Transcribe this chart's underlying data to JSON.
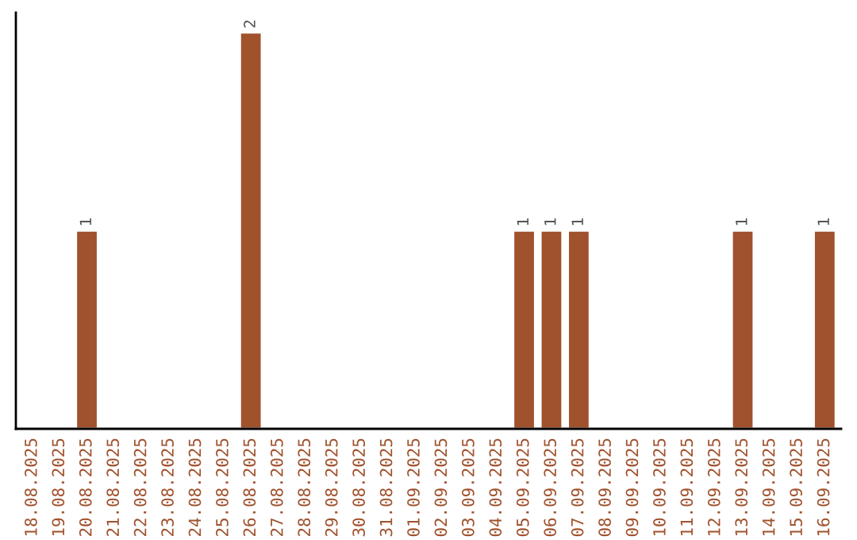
{
  "chart_data": {
    "type": "bar",
    "categories": [
      "18.08.2025",
      "19.08.2025",
      "20.08.2025",
      "21.08.2025",
      "22.08.2025",
      "23.08.2025",
      "24.08.2025",
      "25.08.2025",
      "26.08.2025",
      "27.08.2025",
      "28.08.2025",
      "29.08.2025",
      "30.08.2025",
      "31.08.2025",
      "01.09.2025",
      "02.09.2025",
      "03.09.2025",
      "04.09.2025",
      "05.09.2025",
      "06.09.2025",
      "07.09.2025",
      "08.09.2025",
      "09.09.2025",
      "10.09.2025",
      "11.09.2025",
      "12.09.2025",
      "13.09.2025",
      "14.09.2025",
      "15.09.2025",
      "16.09.2025"
    ],
    "values": [
      0,
      0,
      1,
      0,
      0,
      0,
      0,
      0,
      2,
      0,
      0,
      0,
      0,
      0,
      0,
      0,
      0,
      0,
      1,
      1,
      1,
      0,
      0,
      0,
      0,
      0,
      1,
      0,
      0,
      1
    ],
    "color": "#a0522d",
    "ylim": [
      0,
      2.1
    ],
    "tick_labels": "x",
    "value_labels": [
      null,
      null,
      "1",
      null,
      null,
      null,
      null,
      null,
      "2",
      null,
      null,
      null,
      null,
      null,
      null,
      null,
      null,
      null,
      "1",
      "1",
      "1",
      null,
      null,
      null,
      null,
      null,
      "1",
      null,
      null,
      "1"
    ],
    "grid": false,
    "legend": false
  }
}
